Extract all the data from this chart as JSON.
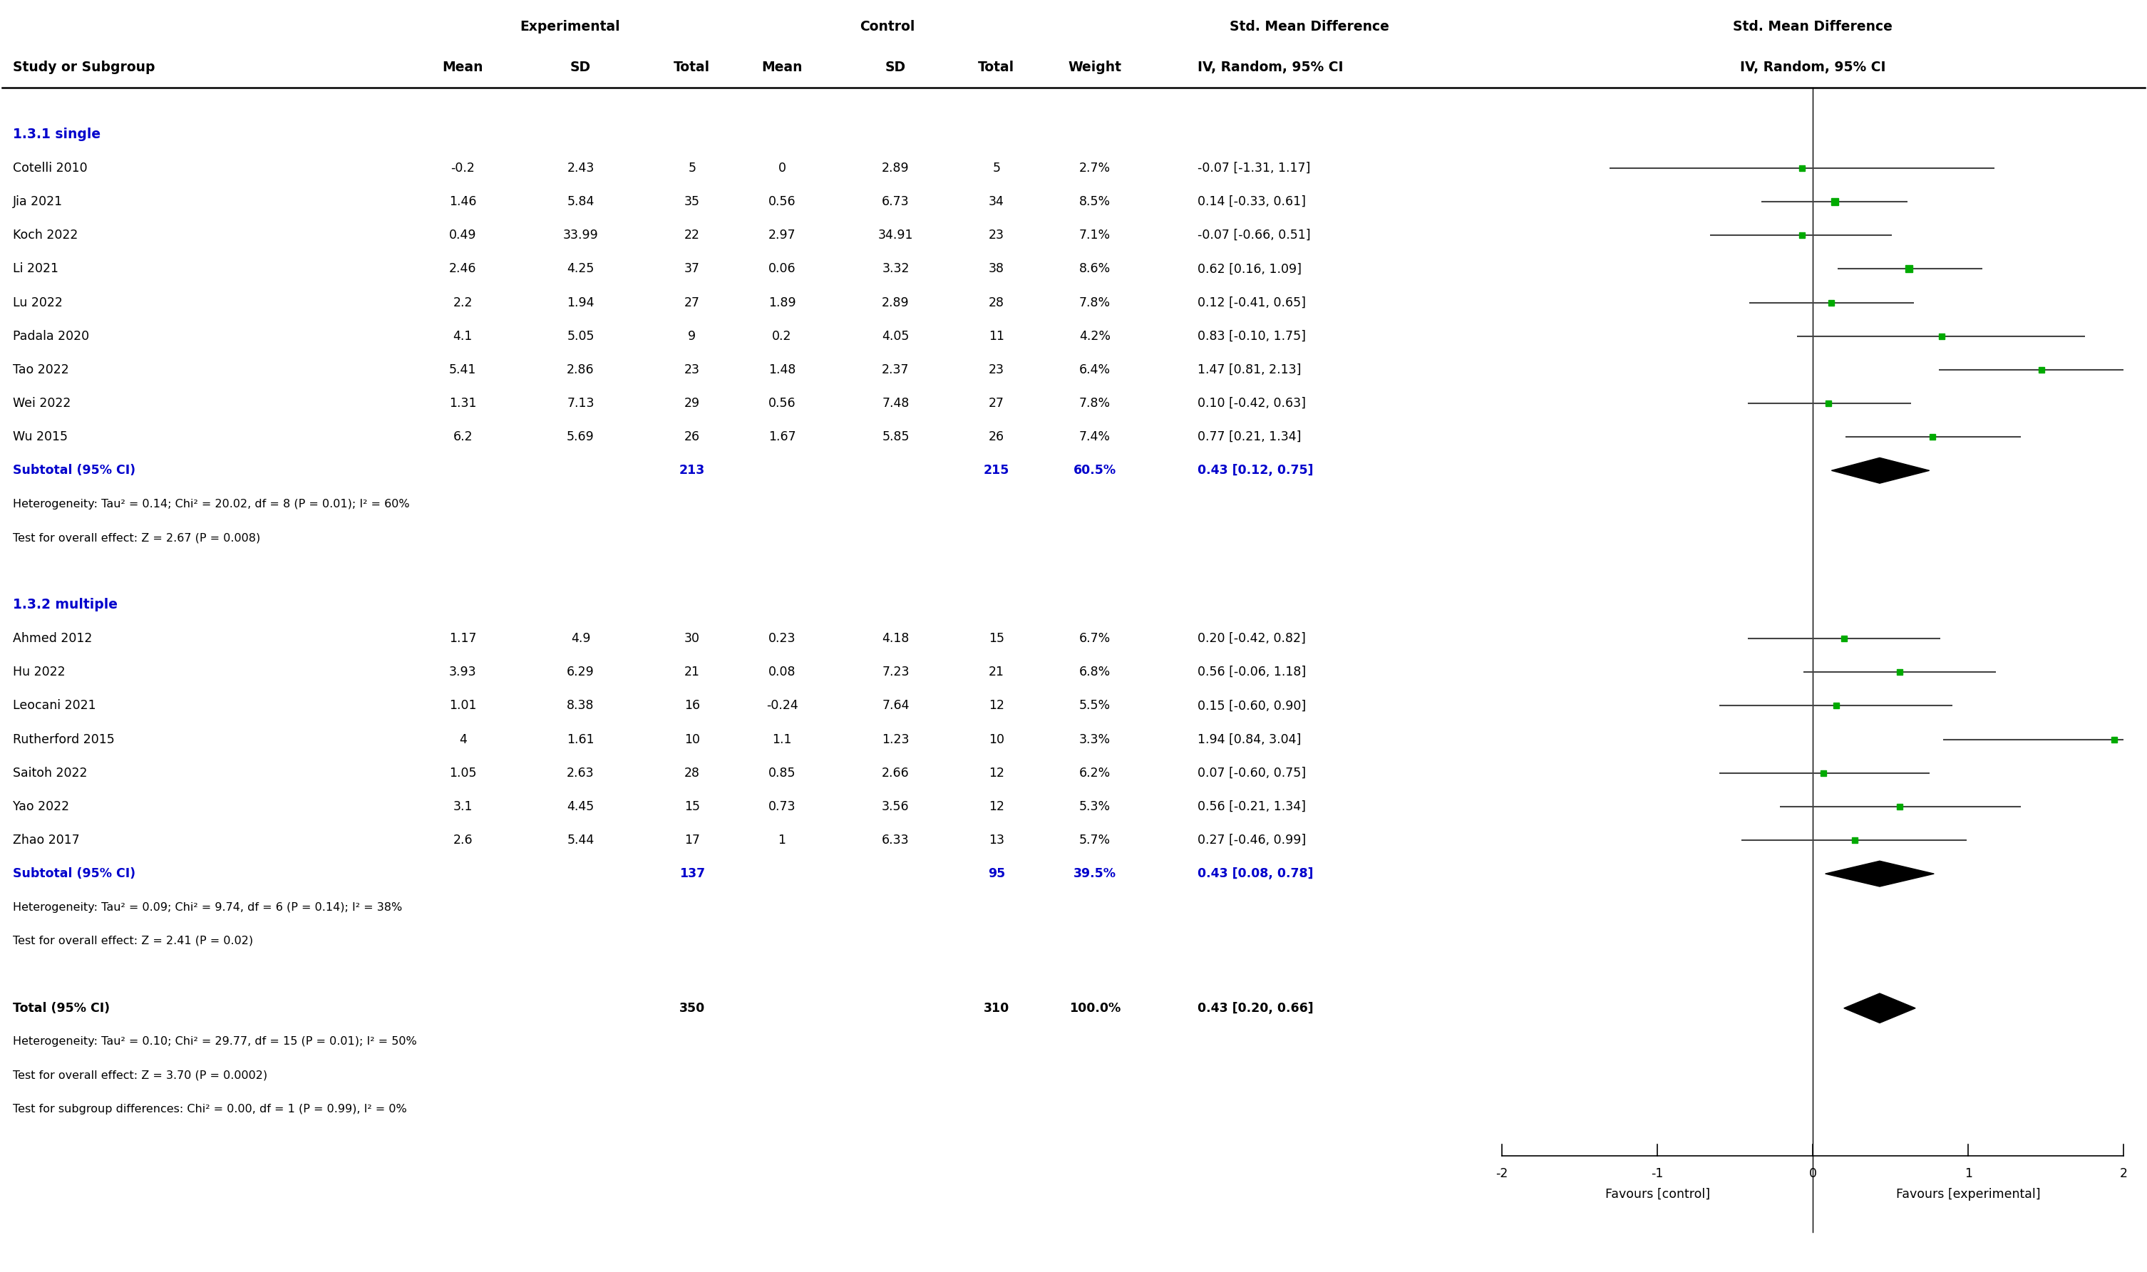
{
  "header_row": {
    "exp_label": "Experimental",
    "ctrl_label": "Control",
    "smd_label": "Std. Mean Difference",
    "smd_label2": "Std. Mean Difference",
    "col_headers": [
      "Study or Subgroup",
      "Mean",
      "SD",
      "Total",
      "Mean",
      "SD",
      "Total",
      "Weight",
      "IV, Random, 95% CI",
      "IV, Random, 95% CI"
    ]
  },
  "section1_label": "1.3.1 single",
  "section2_label": "1.3.2 multiple",
  "single_studies": [
    {
      "study": "Cotelli 2010",
      "exp_mean": -0.2,
      "exp_sd": 2.43,
      "exp_total": 5,
      "ctrl_mean": 0,
      "ctrl_sd": 2.89,
      "ctrl_total": 5,
      "weight": "2.7%",
      "smd": -0.07,
      "ci_low": -1.31,
      "ci_high": 1.17,
      "ci_str": "-0.07 [-1.31, 1.17]"
    },
    {
      "study": "Jia 2021",
      "exp_mean": 1.46,
      "exp_sd": 5.84,
      "exp_total": 35,
      "ctrl_mean": 0.56,
      "ctrl_sd": 6.73,
      "ctrl_total": 34,
      "weight": "8.5%",
      "smd": 0.14,
      "ci_low": -0.33,
      "ci_high": 0.61,
      "ci_str": "0.14 [-0.33, 0.61]"
    },
    {
      "study": "Koch 2022",
      "exp_mean": 0.49,
      "exp_sd": 33.99,
      "exp_total": 22,
      "ctrl_mean": 2.97,
      "ctrl_sd": 34.91,
      "ctrl_total": 23,
      "weight": "7.1%",
      "smd": -0.07,
      "ci_low": -0.66,
      "ci_high": 0.51,
      "ci_str": "-0.07 [-0.66, 0.51]"
    },
    {
      "study": "Li 2021",
      "exp_mean": 2.46,
      "exp_sd": 4.25,
      "exp_total": 37,
      "ctrl_mean": 0.06,
      "ctrl_sd": 3.32,
      "ctrl_total": 38,
      "weight": "8.6%",
      "smd": 0.62,
      "ci_low": 0.16,
      "ci_high": 1.09,
      "ci_str": "0.62 [0.16, 1.09]"
    },
    {
      "study": "Lu 2022",
      "exp_mean": 2.2,
      "exp_sd": 1.94,
      "exp_total": 27,
      "ctrl_mean": 1.89,
      "ctrl_sd": 2.89,
      "ctrl_total": 28,
      "weight": "7.8%",
      "smd": 0.12,
      "ci_low": -0.41,
      "ci_high": 0.65,
      "ci_str": "0.12 [-0.41, 0.65]"
    },
    {
      "study": "Padala 2020",
      "exp_mean": 4.1,
      "exp_sd": 5.05,
      "exp_total": 9,
      "ctrl_mean": 0.2,
      "ctrl_sd": 4.05,
      "ctrl_total": 11,
      "weight": "4.2%",
      "smd": 0.83,
      "ci_low": -0.1,
      "ci_high": 1.75,
      "ci_str": "0.83 [-0.10, 1.75]"
    },
    {
      "study": "Tao 2022",
      "exp_mean": 5.41,
      "exp_sd": 2.86,
      "exp_total": 23,
      "ctrl_mean": 1.48,
      "ctrl_sd": 2.37,
      "ctrl_total": 23,
      "weight": "6.4%",
      "smd": 1.47,
      "ci_low": 0.81,
      "ci_high": 2.13,
      "ci_str": "1.47 [0.81, 2.13]"
    },
    {
      "study": "Wei 2022",
      "exp_mean": 1.31,
      "exp_sd": 7.13,
      "exp_total": 29,
      "ctrl_mean": 0.56,
      "ctrl_sd": 7.48,
      "ctrl_total": 27,
      "weight": "7.8%",
      "smd": 0.1,
      "ci_low": -0.42,
      "ci_high": 0.63,
      "ci_str": "0.10 [-0.42, 0.63]"
    },
    {
      "study": "Wu 2015",
      "exp_mean": 6.2,
      "exp_sd": 5.69,
      "exp_total": 26,
      "ctrl_mean": 1.67,
      "ctrl_sd": 5.85,
      "ctrl_total": 26,
      "weight": "7.4%",
      "smd": 0.77,
      "ci_low": 0.21,
      "ci_high": 1.34,
      "ci_str": "0.77 [0.21, 1.34]"
    }
  ],
  "single_subtotal": {
    "exp_total": 213,
    "ctrl_total": 215,
    "weight": "60.5%",
    "smd": 0.43,
    "ci_low": 0.12,
    "ci_high": 0.75,
    "ci_str": "0.43 [0.12, 0.75]"
  },
  "single_hetero": "Heterogeneity: Tau² = 0.14; Chi² = 20.02, df = 8 (P = 0.01); I² = 60%",
  "single_effect": "Test for overall effect: Z = 2.67 (P = 0.008)",
  "multiple_studies": [
    {
      "study": "Ahmed 2012",
      "exp_mean": 1.17,
      "exp_sd": 4.9,
      "exp_total": 30,
      "ctrl_mean": 0.23,
      "ctrl_sd": 4.18,
      "ctrl_total": 15,
      "weight": "6.7%",
      "smd": 0.2,
      "ci_low": -0.42,
      "ci_high": 0.82,
      "ci_str": "0.20 [-0.42, 0.82]"
    },
    {
      "study": "Hu 2022",
      "exp_mean": 3.93,
      "exp_sd": 6.29,
      "exp_total": 21,
      "ctrl_mean": 0.08,
      "ctrl_sd": 7.23,
      "ctrl_total": 21,
      "weight": "6.8%",
      "smd": 0.56,
      "ci_low": -0.06,
      "ci_high": 1.18,
      "ci_str": "0.56 [-0.06, 1.18]"
    },
    {
      "study": "Leocani 2021",
      "exp_mean": 1.01,
      "exp_sd": 8.38,
      "exp_total": 16,
      "ctrl_mean": -0.24,
      "ctrl_sd": 7.64,
      "ctrl_total": 12,
      "weight": "5.5%",
      "smd": 0.15,
      "ci_low": -0.6,
      "ci_high": 0.9,
      "ci_str": "0.15 [-0.60, 0.90]"
    },
    {
      "study": "Rutherford 2015",
      "exp_mean": 4,
      "exp_sd": 1.61,
      "exp_total": 10,
      "ctrl_mean": 1.1,
      "ctrl_sd": 1.23,
      "ctrl_total": 10,
      "weight": "3.3%",
      "smd": 1.94,
      "ci_low": 0.84,
      "ci_high": 3.04,
      "ci_str": "1.94 [0.84, 3.04]"
    },
    {
      "study": "Saitoh 2022",
      "exp_mean": 1.05,
      "exp_sd": 2.63,
      "exp_total": 28,
      "ctrl_mean": 0.85,
      "ctrl_sd": 2.66,
      "ctrl_total": 12,
      "weight": "6.2%",
      "smd": 0.07,
      "ci_low": -0.6,
      "ci_high": 0.75,
      "ci_str": "0.07 [-0.60, 0.75]"
    },
    {
      "study": "Yao 2022",
      "exp_mean": 3.1,
      "exp_sd": 4.45,
      "exp_total": 15,
      "ctrl_mean": 0.73,
      "ctrl_sd": 3.56,
      "ctrl_total": 12,
      "weight": "5.3%",
      "smd": 0.56,
      "ci_low": -0.21,
      "ci_high": 1.34,
      "ci_str": "0.56 [-0.21, 1.34]"
    },
    {
      "study": "Zhao 2017",
      "exp_mean": 2.6,
      "exp_sd": 5.44,
      "exp_total": 17,
      "ctrl_mean": 1,
      "ctrl_sd": 6.33,
      "ctrl_total": 13,
      "weight": "5.7%",
      "smd": 0.27,
      "ci_low": -0.46,
      "ci_high": 0.99,
      "ci_str": "0.27 [-0.46, 0.99]"
    }
  ],
  "multiple_subtotal": {
    "exp_total": 137,
    "ctrl_total": 95,
    "weight": "39.5%",
    "smd": 0.43,
    "ci_low": 0.08,
    "ci_high": 0.78,
    "ci_str": "0.43 [0.08, 0.78]"
  },
  "multiple_hetero": "Heterogeneity: Tau² = 0.09; Chi² = 9.74, df = 6 (P = 0.14); I² = 38%",
  "multiple_effect": "Test for overall effect: Z = 2.41 (P = 0.02)",
  "total": {
    "exp_total": 350,
    "ctrl_total": 310,
    "weight": "100.0%",
    "smd": 0.43,
    "ci_low": 0.2,
    "ci_high": 0.66,
    "ci_str": "0.43 [0.20, 0.66]"
  },
  "total_hetero": "Heterogeneity: Tau² = 0.10; Chi² = 29.77, df = 15 (P = 0.01); I² = 50%",
  "total_effect": "Test for overall effect: Z = 3.70 (P = 0.0002)",
  "total_subgroup": "Test for subgroup differences: Chi² = 0.00, df = 1 (P = 0.99), I² = 0%",
  "axis_min": -2,
  "axis_max": 2,
  "axis_ticks": [
    -2,
    -1,
    0,
    1,
    2
  ],
  "favours_left": "Favours [control]",
  "favours_right": "Favours [experimental]",
  "forest_bg": "#ffffff",
  "ci_color": "#00aa00",
  "diamond_color": "#000000",
  "text_color": "#000000",
  "subgroup_color": "#0000cc",
  "bold_color": "#000000"
}
